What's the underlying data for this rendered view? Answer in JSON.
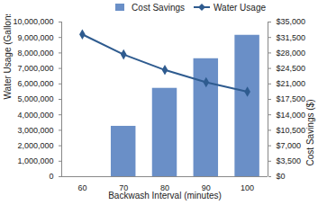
{
  "chart_data": {
    "type": "bar",
    "x_label": "Backwash Interval (minutes)",
    "y_label": "Water Usage (Gallons/year)",
    "y2_label": "Cost Savings ($)",
    "categories": [
      60,
      70,
      80,
      90,
      100
    ],
    "series": [
      {
        "name": "Cost Savings",
        "type": "bar",
        "axis": "y2",
        "color": "#6a8fc7",
        "values": [
          0,
          11400,
          20000,
          26700,
          32000
        ]
      },
      {
        "name": "Water Usage",
        "type": "line",
        "color": "#2e5b8f",
        "marker": "diamond",
        "values": [
          9200000,
          7900000,
          6900000,
          6100000,
          5500000
        ]
      }
    ],
    "ylim": [
      0,
      10000000
    ],
    "yticks": [
      0,
      {
        "value": 1000000,
        "label": "1,000,000"
      },
      {
        "value": 2000000,
        "label": "2,000,000"
      },
      {
        "value": 3000000,
        "label": "3,000,000"
      },
      {
        "value": 4000000,
        "label": "4,000,000"
      },
      {
        "value": 5000000,
        "label": "5,000,000"
      },
      {
        "value": 6000000,
        "label": "6,000,000"
      },
      {
        "value": 7000000,
        "label": "7,000,000"
      },
      {
        "value": 8000000,
        "label": "8,000,000"
      },
      {
        "value": 9000000,
        "label": "9,000,000"
      },
      {
        "value": 10000000,
        "label": "10,000,000"
      }
    ],
    "y2lim": [
      0,
      35000
    ],
    "y2ticks": [
      {
        "value": 0,
        "label": "$0"
      },
      {
        "value": 3500,
        "label": "$3,500"
      },
      {
        "value": 7000,
        "label": "$7,000"
      },
      {
        "value": 10500,
        "label": "$10,500"
      },
      {
        "value": 14000,
        "label": "$14,000"
      },
      {
        "value": 17500,
        "label": "$17,500"
      },
      {
        "value": 21000,
        "label": "$21,000"
      },
      {
        "value": 24500,
        "label": "$24,500"
      },
      {
        "value": 28000,
        "label": "$28,000"
      },
      {
        "value": 31500,
        "label": "$31,500"
      },
      {
        "value": 35000,
        "label": "$35,000"
      }
    ],
    "grid": false,
    "legend": "top-right"
  }
}
